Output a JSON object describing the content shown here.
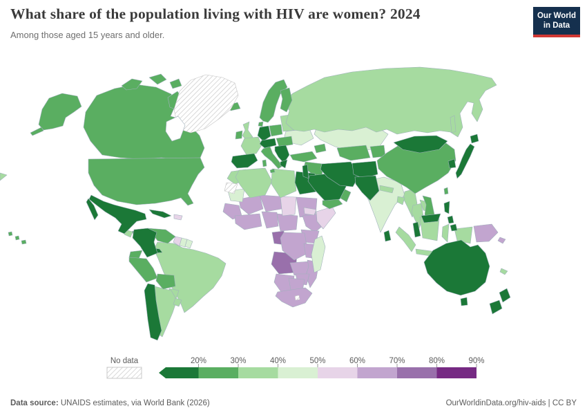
{
  "header": {
    "title": "What share of the population living with HIV are women? 2024",
    "subtitle": "Among those aged 15 years and older.",
    "logo_line1": "Our World",
    "logo_line2": "in Data"
  },
  "colors": {
    "logo_bg": "#15304e",
    "logo_accent": "#d13834",
    "country_border": "#a0b1bc",
    "no_data_stroke": "#c4c4c4",
    "legend_text": "#5b5b5b"
  },
  "legend": {
    "no_data_label": "No data",
    "bins": [
      {
        "range": "<20%",
        "tick": "20%",
        "color": "#1b7837"
      },
      {
        "range": "20–30%",
        "tick": "30%",
        "color": "#5aae61"
      },
      {
        "range": "30–40%",
        "tick": "40%",
        "color": "#a6dba0"
      },
      {
        "range": "40–50%",
        "tick": "50%",
        "color": "#d9f0d3"
      },
      {
        "range": "50–60%",
        "tick": "60%",
        "color": "#e7d4e8"
      },
      {
        "range": "60–70%",
        "tick": "70%",
        "color": "#c2a5cf"
      },
      {
        "range": "70–80%",
        "tick": "80%",
        "color": "#9970ab"
      },
      {
        "range": "80–90%",
        "tick": "90%",
        "color": "#762a83"
      }
    ]
  },
  "footer": {
    "source_label": "Data source:",
    "source_text": " UNAIDS estimates, via World Bank (2026)",
    "credit": "OurWorldinData.org/hiv-aids | CC BY"
  },
  "chart_data": {
    "type": "choropleth",
    "title": "What share of the population living with HIV are women?",
    "year": 2024,
    "subtitle": "Among those aged 15 years and older.",
    "unit": "% of people aged 15+ living with HIV who are women",
    "legend_position": "bottom",
    "color_scheme": "PRGn (green = low share, purple = high share)",
    "bins": [
      {
        "range": "<20%",
        "color": "#1b7837",
        "regions": [
          "Mexico",
          "Cuba",
          "Honduras",
          "Nicaragua",
          "Costa Rica",
          "Panama",
          "Colombia",
          "Chile",
          "Spain",
          "Germany",
          "Czechia & Austria",
          "Balkans",
          "Greece",
          "Egypt",
          "Levant",
          "Saudi Arabia",
          "Iran",
          "Afghanistan",
          "Pakistan",
          "Mongolia",
          "Japan",
          "South Korea",
          "Philippines",
          "Malaysia",
          "Sri Lanka",
          "Australia",
          "New Zealand"
        ]
      },
      {
        "range": "20–30%",
        "color": "#5aae61",
        "regions": [
          "Canada",
          "United States",
          "Venezuela",
          "Ecuador",
          "Peru",
          "Bolivia",
          "Iceland",
          "Ireland",
          "Norway & Sweden",
          "Finland",
          "Denmark",
          "Poland",
          "Italy",
          "Hungary & Romania",
          "Turkey",
          "Caucasus",
          "Iraq & Syria",
          "Yemen",
          "Oman",
          "Turkmenistan & Uzbekistan",
          "Kyrgyzstan & Tajikistan",
          "China",
          "Vietnam",
          "Taiwan"
        ]
      },
      {
        "range": "30–40%",
        "color": "#a6dba0",
        "regions": [
          "Guatemala",
          "Brazil",
          "Paraguay",
          "Argentina",
          "Uruguay",
          "United Kingdom",
          "France",
          "Baltics & Belarus",
          "Russia",
          "Morocco",
          "Algeria",
          "Libya & Tunisia",
          "North Korea",
          "Myanmar",
          "Thailand",
          "Laos",
          "Cambodia",
          "Indonesia",
          "Nepal",
          "Bangladesh",
          "New Caledonia"
        ]
      },
      {
        "range": "40–50%",
        "color": "#d9f0d3",
        "regions": [
          "India",
          "Kazakhstan",
          "Ukraine",
          "Madagascar",
          "Mauritania",
          "Suriname",
          "French Guiana"
        ]
      },
      {
        "range": "50–60%",
        "color": "#e7d4e8",
        "regions": [
          "Haiti",
          "Guyana",
          "Chad",
          "Somalia",
          "Eritrea & Djibouti"
        ]
      },
      {
        "range": "60–70%",
        "color": "#c2a5cf",
        "regions": [
          "Senegal & Guinea",
          "Mali",
          "Niger",
          "Sudan",
          "West Africa coast",
          "Nigeria",
          "Cameroon & CAR",
          "Ethiopia",
          "Kenya & Uganda",
          "DR Congo",
          "Tanzania",
          "Zambia",
          "Malawi & Mozambique",
          "Zimbabwe",
          "Namibia",
          "Botswana",
          "South Africa",
          "Papua New Guinea"
        ]
      },
      {
        "range": "70–80%",
        "color": "#9970ab",
        "regions": [
          "Gabon",
          "Angola"
        ]
      },
      {
        "range": "80–90%",
        "color": "#762a83",
        "regions": []
      }
    ],
    "no_data": {
      "label": "No data",
      "regions": [
        "Greenland",
        "Western Sahara",
        "Lesotho"
      ]
    }
  }
}
